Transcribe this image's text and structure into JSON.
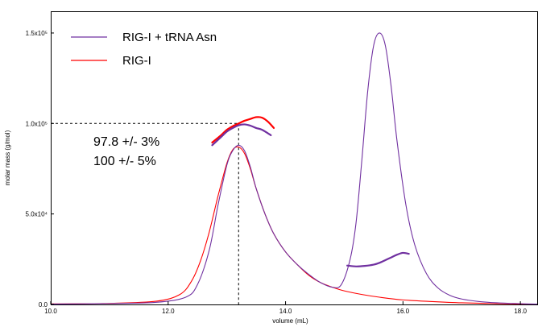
{
  "chart_data": {
    "type": "line",
    "xlabel": "volume (mL)",
    "ylabel": "molar mass (g/mol)",
    "xlim": [
      10.0,
      18.3
    ],
    "ylim": [
      0,
      162000.0
    ],
    "x_ticks": [
      {
        "value": 10.0,
        "label": "10.0"
      },
      {
        "value": 12.0,
        "label": "12.0"
      },
      {
        "value": 14.0,
        "label": "14.0"
      },
      {
        "value": 16.0,
        "label": "16.0"
      },
      {
        "value": 18.0,
        "label": "18.0"
      }
    ],
    "y_ticks": [
      {
        "value": 0,
        "label": "0.0"
      },
      {
        "value": 50000,
        "label": "5.0x10⁴"
      },
      {
        "value": 100000,
        "label": "1.0x10⁵"
      },
      {
        "value": 150000,
        "label": "1.5x10⁵"
      }
    ],
    "legend_position": "top-left",
    "series": [
      {
        "name": "RIG-I + tRNA Asn",
        "color": "#7030a0",
        "kind": "trace",
        "x": [
          10.0,
          11.0,
          11.8,
          12.3,
          12.5,
          12.7,
          12.85,
          13.0,
          13.1,
          13.2,
          13.3,
          13.4,
          13.5,
          13.65,
          13.8,
          14.0,
          14.2,
          14.4,
          14.6,
          14.8,
          14.95,
          15.1,
          15.2,
          15.3,
          15.4,
          15.5,
          15.6,
          15.7,
          15.8,
          15.9,
          16.05,
          16.2,
          16.4,
          16.6,
          16.8,
          17.0,
          17.3,
          17.6,
          18.0,
          18.3
        ],
        "y": [
          200,
          500,
          1200,
          4000,
          11000,
          30000,
          55000,
          77000,
          85000,
          88000,
          85000,
          76000,
          64000,
          50000,
          39000,
          29000,
          22000,
          16500,
          12000,
          9500,
          11000,
          25000,
          45000,
          80000,
          118000,
          143000,
          150000,
          143000,
          120000,
          90000,
          55000,
          33000,
          17000,
          9000,
          5000,
          3000,
          1600,
          900,
          400,
          200
        ]
      },
      {
        "name": "RIG-I",
        "color": "#ff0000",
        "kind": "trace",
        "x": [
          10.0,
          11.0,
          11.8,
          12.2,
          12.4,
          12.55,
          12.7,
          12.85,
          13.0,
          13.1,
          13.2,
          13.3,
          13.4,
          13.5,
          13.65,
          13.8,
          14.0,
          14.2,
          14.4,
          14.6,
          14.8,
          15.0,
          15.3,
          15.6,
          16.0,
          16.5,
          17.0,
          17.5,
          18.0,
          18.3
        ],
        "y": [
          300,
          600,
          1800,
          5500,
          13000,
          24000,
          40000,
          60000,
          78000,
          85500,
          87000,
          83500,
          75000,
          64000,
          50000,
          39000,
          29000,
          22000,
          16000,
          12000,
          9500,
          7500,
          5500,
          4000,
          2500,
          1600,
          900,
          500,
          200,
          100
        ]
      },
      {
        "name": "RIG-I + tRNA Asn molar mass",
        "color": "#7030a0",
        "kind": "mass",
        "x": [
          12.75,
          12.9,
          13.0,
          13.1,
          13.2,
          13.3,
          13.4,
          13.5,
          13.6,
          13.75
        ],
        "y": [
          88000,
          92500,
          95500,
          97500,
          99000,
          99500,
          98800,
          97500,
          96500,
          93500
        ]
      },
      {
        "name": "RIG-I molar mass",
        "color": "#ff0000",
        "kind": "mass",
        "x": [
          12.75,
          12.9,
          13.0,
          13.1,
          13.2,
          13.3,
          13.4,
          13.5,
          13.6,
          13.7,
          13.8
        ],
        "y": [
          89500,
          93500,
          96500,
          98500,
          100000,
          101500,
          102500,
          103500,
          103200,
          101000,
          97500
        ]
      },
      {
        "name": "tRNA peak molar mass",
        "color": "#7030a0",
        "kind": "mass",
        "x": [
          15.05,
          15.2,
          15.35,
          15.5,
          15.6,
          15.7,
          15.8,
          15.9,
          16.0,
          16.1
        ],
        "y": [
          21500,
          21000,
          21300,
          22000,
          23000,
          24500,
          26000,
          27500,
          28500,
          28000
        ]
      }
    ],
    "reference_lines": {
      "x": 13.2,
      "y": 100000,
      "color": "#000000"
    },
    "annotations": [
      "97.8 +/- 3%",
      "100  +/- 5%"
    ]
  }
}
